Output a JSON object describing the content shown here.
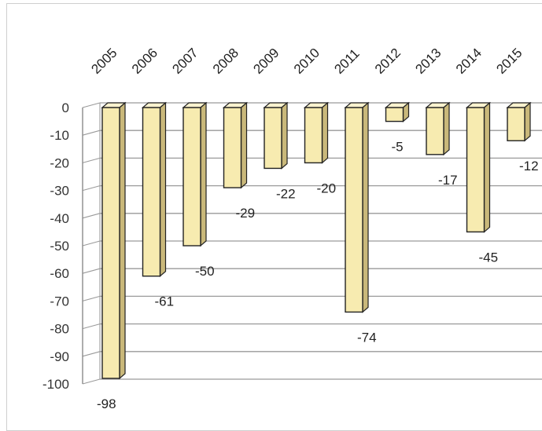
{
  "chart_data": {
    "type": "bar",
    "categories": [
      "2005",
      "2006",
      "2007",
      "2008",
      "2009",
      "2010",
      "2011",
      "2012",
      "2013",
      "2014",
      "2015"
    ],
    "values": [
      -98,
      -61,
      -50,
      -29,
      -22,
      -20,
      -74,
      -5,
      -17,
      -45,
      -12
    ],
    "y_ticks": [
      "0",
      "-10",
      "-20",
      "-30",
      "-40",
      "-50",
      "-60",
      "-70",
      "-80",
      "-90",
      "-100"
    ],
    "ylim": [
      -100,
      0
    ],
    "title": "",
    "xlabel": "",
    "ylabel": "",
    "grid": true,
    "style": "3d-column",
    "bar_color": "#F7EBB0"
  }
}
